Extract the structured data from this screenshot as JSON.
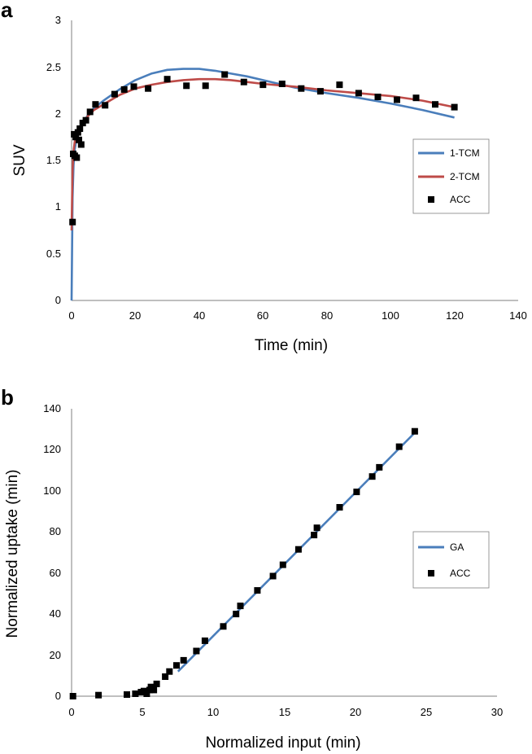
{
  "figure": {
    "panel_a_label": "a",
    "panel_b_label": "b"
  },
  "colors": {
    "blue": "#4a7ebb",
    "red": "#be4b48",
    "marker": "#000000",
    "axis": "#7f7f7f"
  },
  "chart_data": [
    {
      "type": "scatter",
      "title": "",
      "xlabel": "Time (min)",
      "ylabel": "SUV",
      "xlim": [
        0,
        140
      ],
      "ylim": [
        0,
        3
      ],
      "xticks": [
        "0",
        "20",
        "40",
        "60",
        "80",
        "100",
        "120",
        "140"
      ],
      "yticks": [
        "0",
        "0.5",
        "1",
        "1.5",
        "2",
        "2.5",
        "3"
      ],
      "grid": false,
      "legend_position": "right",
      "legend": [
        "1-TCM",
        "2-TCM",
        "ACC"
      ],
      "series": [
        {
          "name": "1-TCM",
          "kind": "line",
          "color": "#4a7ebb",
          "x": [
            0,
            0.3,
            0.6,
            1,
            1.5,
            2,
            3,
            4,
            5,
            7,
            10,
            15,
            20,
            25,
            30,
            35,
            40,
            45,
            50,
            55,
            60,
            70,
            80,
            90,
            100,
            110,
            120
          ],
          "y": [
            0,
            1.1,
            1.45,
            1.62,
            1.72,
            1.78,
            1.86,
            1.92,
            1.98,
            2.06,
            2.14,
            2.26,
            2.36,
            2.43,
            2.47,
            2.48,
            2.48,
            2.46,
            2.43,
            2.4,
            2.36,
            2.28,
            2.22,
            2.17,
            2.11,
            2.04,
            1.96
          ]
        },
        {
          "name": "2-TCM",
          "kind": "line",
          "color": "#be4b48",
          "x": [
            0,
            0.3,
            0.6,
            1,
            1.5,
            2,
            3,
            4,
            5,
            7,
            10,
            15,
            20,
            25,
            30,
            35,
            40,
            45,
            50,
            55,
            60,
            70,
            80,
            90,
            100,
            110,
            120
          ],
          "y": [
            0.75,
            1.4,
            1.6,
            1.7,
            1.76,
            1.8,
            1.87,
            1.92,
            1.97,
            2.04,
            2.1,
            2.2,
            2.27,
            2.31,
            2.34,
            2.36,
            2.37,
            2.37,
            2.36,
            2.34,
            2.32,
            2.29,
            2.25,
            2.22,
            2.19,
            2.14,
            2.07
          ]
        },
        {
          "name": "ACC",
          "kind": "marker",
          "color": "#000000",
          "x": [
            0.3,
            0.5,
            0.8,
            1.0,
            1.3,
            1.6,
            2.0,
            2.3,
            2.6,
            3.0,
            3.5,
            4.5,
            5.8,
            7.5,
            10.5,
            13.5,
            16.5,
            19.5,
            24,
            30,
            36,
            42,
            48,
            54,
            60,
            66,
            72,
            78,
            84,
            90,
            96,
            102,
            108,
            114,
            120
          ],
          "y": [
            0.84,
            1.57,
            1.78,
            1.55,
            1.75,
            1.53,
            1.8,
            1.72,
            1.84,
            1.67,
            1.9,
            1.93,
            2.02,
            2.1,
            2.09,
            2.21,
            2.26,
            2.29,
            2.27,
            2.37,
            2.3,
            2.3,
            2.42,
            2.34,
            2.31,
            2.32,
            2.27,
            2.24,
            2.31,
            2.22,
            2.18,
            2.15,
            2.17,
            2.1,
            2.07
          ]
        }
      ]
    },
    {
      "type": "scatter",
      "title": "",
      "xlabel": "Normalized input (min)",
      "ylabel": "Normalized uptake (min)",
      "xlim": [
        0,
        30
      ],
      "ylim": [
        0,
        140
      ],
      "xticks": [
        "0",
        "5",
        "10",
        "15",
        "20",
        "25",
        "30"
      ],
      "yticks": [
        "0",
        "20",
        "40",
        "60",
        "80",
        "100",
        "120",
        "140"
      ],
      "grid": false,
      "legend_position": "right",
      "legend": [
        "GA",
        "ACC"
      ],
      "series": [
        {
          "name": "GA",
          "kind": "line",
          "color": "#4a7ebb",
          "x": [
            7.5,
            24.3
          ],
          "y": [
            12,
            129
          ]
        },
        {
          "name": "ACC",
          "kind": "marker",
          "color": "#000000",
          "x": [
            0.1,
            1.9,
            3.9,
            4.5,
            4.9,
            5.1,
            5.3,
            5.5,
            5.6,
            5.8,
            6.0,
            6.6,
            6.9,
            7.4,
            7.9,
            8.8,
            9.4,
            10.7,
            11.6,
            11.9,
            13.1,
            14.2,
            14.9,
            16.0,
            17.1,
            17.3,
            18.9,
            20.1,
            21.2,
            21.7,
            23.1,
            24.2
          ],
          "y": [
            0,
            0.5,
            0.8,
            1.2,
            2,
            2.5,
            1.2,
            3,
            4.5,
            3,
            6,
            9.5,
            12,
            15,
            17.5,
            22,
            27,
            34,
            40,
            44,
            51.5,
            58.5,
            64,
            71.5,
            78.5,
            82,
            92,
            99.5,
            107,
            111.5,
            121.5,
            129
          ]
        }
      ]
    }
  ]
}
